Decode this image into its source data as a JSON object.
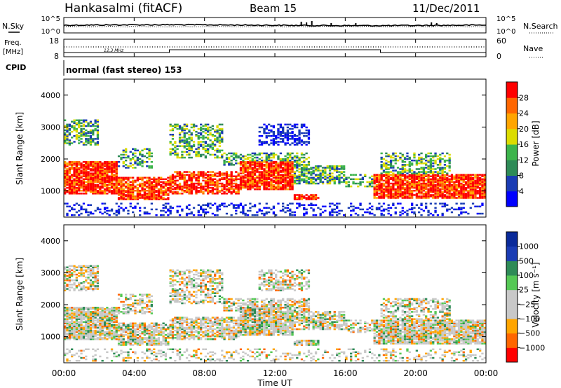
{
  "header": {
    "station": "Hankasalmi (fitACF)",
    "beam": "Beam 15",
    "date": "11/Dec/2011"
  },
  "left_labels": {
    "nsky": "N.Sky",
    "freq_line1": "Freq.",
    "freq_line2": "[MHz]",
    "cpid": "CPID"
  },
  "right_labels": {
    "nsearch": "N.Search",
    "nave": "Nave"
  },
  "cpid_text": "normal (fast stereo) 153",
  "colors": {
    "power": [
      "#0000ff",
      "#1a3cb4",
      "#2e8b57",
      "#3cb44b",
      "#dcdc00",
      "#ffa500",
      "#ff6600",
      "#ff0000"
    ],
    "velocity": [
      "#ff0000",
      "#ff6600",
      "#ffa500",
      "#c8c8c8",
      "#c8c8c8",
      "#55c855",
      "#2e8b57",
      "#1a3cb4",
      "#0a2a9a"
    ]
  },
  "chart_data": [
    {
      "type": "line",
      "name": "nsky-nsearch",
      "axis_left_ticks": [
        "10^5",
        "10^0"
      ],
      "axis_right_ticks": [
        "10^5",
        "10^0"
      ]
    },
    {
      "type": "line",
      "name": "frequency-nave",
      "axis_left_ticks": [
        "18",
        "8"
      ],
      "axis_right_ticks": [
        "60",
        "0"
      ],
      "freq_label": "12.3 MHz"
    },
    {
      "type": "heatmap",
      "name": "power",
      "ylabel": "Slant Range [km]",
      "ytick_labels": [
        "4000",
        "3000",
        "2000",
        "1000"
      ],
      "ylim": [
        180,
        4500
      ],
      "colorbar": {
        "label": "Power [dB]",
        "tick_labels": [
          "28",
          "24",
          "20",
          "16",
          "12",
          "8",
          "4"
        ]
      }
    },
    {
      "type": "heatmap",
      "name": "velocity",
      "ylabel": "Slant Range [km]",
      "ytick_labels": [
        "4000",
        "3000",
        "2000",
        "1000"
      ],
      "ylim": [
        180,
        4500
      ],
      "colorbar": {
        "label": "Velocity [m s⁻¹]",
        "tick_labels": [
          "1000",
          "500",
          "100",
          "25",
          "−25",
          "−100",
          "−500",
          "−1000"
        ]
      }
    }
  ],
  "x_axis": {
    "label": "Time UT",
    "tick_labels": [
      "00:00",
      "04:00",
      "08:00",
      "12:00",
      "16:00",
      "20:00",
      "00:00"
    ]
  }
}
